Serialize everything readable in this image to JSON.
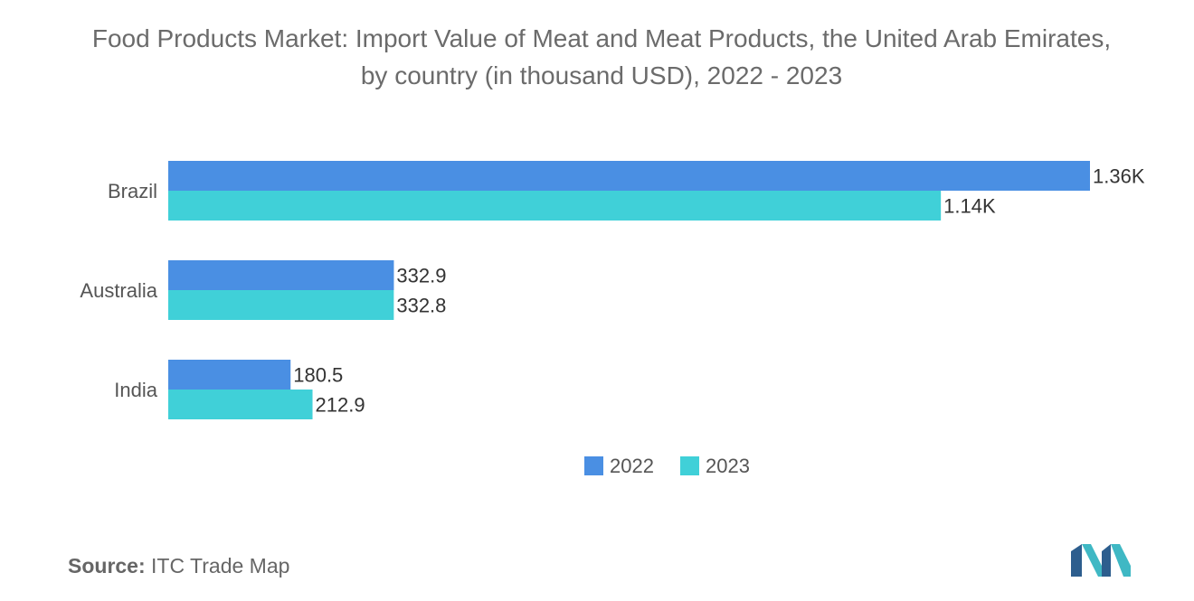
{
  "chart_data": {
    "type": "bar",
    "orientation": "horizontal",
    "title": "Food Products Market: Import Value of Meat and Meat Products, the United Arab Emirates, by country (in thousand USD), 2022 - 2023",
    "categories": [
      "Brazil",
      "Australia",
      "India"
    ],
    "series": [
      {
        "name": "2022",
        "values": [
          1360,
          332.9,
          180.5
        ],
        "labels": [
          "1.36K",
          "332.9",
          "180.5"
        ],
        "color": "#4a8fe3"
      },
      {
        "name": "2023",
        "values": [
          1140,
          332.8,
          212.9
        ],
        "labels": [
          "1.14K",
          "332.8",
          "212.9"
        ],
        "color": "#40d0d8"
      }
    ],
    "xlim": [
      0,
      1360
    ],
    "xlabel": "",
    "ylabel": "",
    "grid": false,
    "legend_position": "bottom-center"
  },
  "source": {
    "label": "Source:",
    "text": "ITC Trade Map"
  },
  "logo": {
    "icon": "mordor-intelligence-logo-icon",
    "colors": [
      "#2d5e8e",
      "#3fb8c4"
    ]
  }
}
